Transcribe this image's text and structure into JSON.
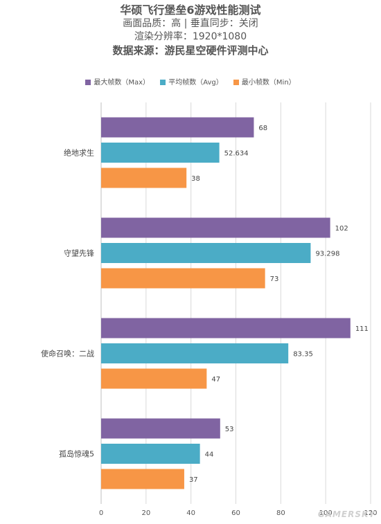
{
  "header": {
    "title": "华硕飞行堡垒6游戏性能测试",
    "line2": "画面品质：高 | 垂直同步：关闭",
    "line3": "渲染分辨率：1920*1080",
    "line4": "数据来源：游民星空硬件评测中心"
  },
  "watermark": "GAMERSKY",
  "chart_data": {
    "type": "bar",
    "orientation": "horizontal",
    "categories": [
      "绝地求生",
      "守望先锋",
      "使命召唤：二战",
      "孤岛惊魂5"
    ],
    "series": [
      {
        "name": "最大帧数（Max）",
        "color": "#8064a2",
        "values": [
          68,
          102,
          111,
          53
        ],
        "labels": [
          "68",
          "102",
          "111",
          "53"
        ]
      },
      {
        "name": "平均帧数（Avg）",
        "color": "#4bacc6",
        "values": [
          52.634,
          93.298,
          83.35,
          44
        ],
        "labels": [
          "52.634",
          "93.298",
          "83.35",
          "44"
        ]
      },
      {
        "name": "最小帧数（Min）",
        "color": "#f79646",
        "values": [
          38,
          73,
          47,
          37
        ],
        "labels": [
          "38",
          "73",
          "47",
          "37"
        ]
      }
    ],
    "xlim": [
      0,
      120
    ],
    "xticks": [
      "0",
      "20",
      "40",
      "60",
      "80",
      "100",
      "120"
    ],
    "grid": true,
    "legend_position": "top"
  }
}
